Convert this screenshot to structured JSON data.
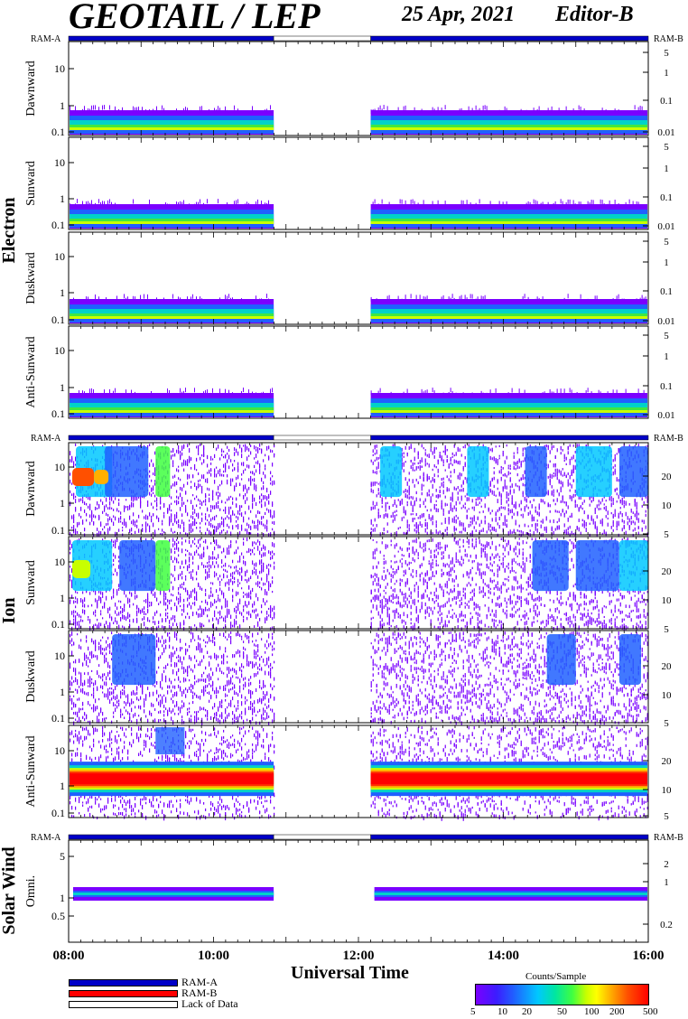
{
  "header": {
    "title": "GEOTAIL / LEP",
    "date": "25 Apr, 2021",
    "editor": "Editor-B"
  },
  "axis": {
    "xlabel": "Universal Time",
    "xticks": [
      "08:00",
      "10:00",
      "12:00",
      "14:00",
      "16:00"
    ]
  },
  "ram": {
    "left": "RAM-A",
    "right": "RAM-B"
  },
  "groups": [
    {
      "name": "Electron"
    },
    {
      "name": "Ion"
    },
    {
      "name": "Solar Wind"
    }
  ],
  "legend": {
    "ram_a": "RAM-A",
    "ram_b": "RAM-B",
    "lack": "Lack of Data",
    "colors": {
      "ram_a": "#0000c8",
      "ram_b": "#ff0000"
    }
  },
  "colorbar": {
    "title": "Counts/Sample",
    "ticks": [
      "5",
      "10",
      "20",
      "50",
      "100",
      "200",
      "500"
    ]
  },
  "chart_data": {
    "type": "heatmap",
    "x_range_hours": [
      8,
      16
    ],
    "data_gap_hours": [
      10.83,
      12.17
    ],
    "panels": [
      {
        "group": "Electron",
        "label": "Dawnward",
        "left_ticks": [
          "10",
          "1",
          "0.1"
        ],
        "right_ticks": [
          "5",
          "1",
          "0.1",
          "0.01"
        ]
      },
      {
        "group": "Electron",
        "label": "Sunward",
        "left_ticks": [
          "10",
          "1",
          "0.1"
        ],
        "right_ticks": [
          "5",
          "1",
          "0.1",
          "0.01"
        ]
      },
      {
        "group": "Electron",
        "label": "Duskward",
        "left_ticks": [
          "10",
          "1",
          "0.1"
        ],
        "right_ticks": [
          "5",
          "1",
          "0.1",
          "0.01"
        ]
      },
      {
        "group": "Electron",
        "label": "Anti-Sunward",
        "left_ticks": [
          "10",
          "1",
          "0.1"
        ],
        "right_ticks": [
          "5",
          "1",
          "0.1",
          "0.01"
        ]
      },
      {
        "group": "Ion",
        "label": "Dawnward",
        "left_ticks": [
          "10",
          "1",
          "0.1"
        ],
        "right_ticks": [
          "20",
          "10",
          "5"
        ]
      },
      {
        "group": "Ion",
        "label": "Sunward",
        "left_ticks": [
          "10",
          "1",
          "0.1"
        ],
        "right_ticks": [
          "20",
          "10",
          "5"
        ]
      },
      {
        "group": "Ion",
        "label": "Duskward",
        "left_ticks": [
          "10",
          "1",
          "0.1"
        ],
        "right_ticks": [
          "20",
          "10",
          "5"
        ]
      },
      {
        "group": "Ion",
        "label": "Anti-Sunward",
        "left_ticks": [
          "10",
          "1",
          "0.1"
        ],
        "right_ticks": [
          "20",
          "10",
          "5"
        ]
      },
      {
        "group": "Solar Wind",
        "label": "Omni.",
        "left_ticks": [
          "5",
          "1",
          "0.5"
        ],
        "right_ticks": [
          "2",
          "1",
          "0.2"
        ]
      }
    ]
  }
}
